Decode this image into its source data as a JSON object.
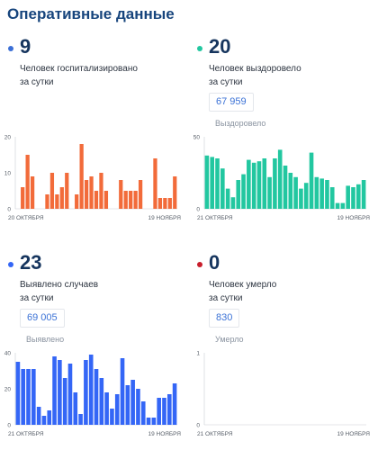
{
  "title": "Оперативные данные",
  "panels": [
    {
      "value": "9",
      "desc1": "Человек госпитализировано",
      "desc2": "за сутки",
      "total": "",
      "total_label": "",
      "color": "#f26b3a",
      "dot_color": "#3b6fd6"
    },
    {
      "value": "20",
      "desc1": "Человек выздоровело",
      "desc2": "за сутки",
      "total": "67 959",
      "total_label": "Выздоровело",
      "color": "#22c7a0",
      "dot_color": "#22c7a0"
    },
    {
      "value": "23",
      "desc1": "Выявлено случаев",
      "desc2": "за сутки",
      "total": "69 005",
      "total_label": "Выявлено",
      "color": "#3466f6",
      "dot_color": "#3466f6"
    },
    {
      "value": "0",
      "desc1": "Человек умерло",
      "desc2": "за сутки",
      "total": "830",
      "total_label": "Умерло",
      "color": "#d63c3c",
      "dot_color": "#c81e2c"
    }
  ],
  "chart_data": [
    {
      "type": "bar",
      "title": "Человек госпитализировано за сутки",
      "ylim": [
        0,
        20
      ],
      "yticks": [
        "0",
        "10",
        "20"
      ],
      "x_start_label": "20 ОКТЯБРЯ",
      "x_end_label": "19 НОЯБРЯ",
      "values": [
        0,
        6,
        15,
        9,
        0,
        0,
        4,
        10,
        4,
        6,
        10,
        0,
        4,
        18,
        8,
        9,
        5,
        10,
        5,
        0,
        0,
        8,
        5,
        5,
        5,
        8,
        0,
        0,
        14,
        3,
        3,
        3,
        9
      ],
      "color": "#f26b3a"
    },
    {
      "type": "bar",
      "title": "Человек выздоровело за сутки",
      "ylim": [
        0,
        50
      ],
      "yticks": [
        "0",
        "50"
      ],
      "x_start_label": "21 ОКТЯБРЯ",
      "x_end_label": "19 НОЯБРЯ",
      "values": [
        37,
        36,
        35,
        28,
        14,
        8,
        20,
        24,
        34,
        32,
        33,
        35,
        22,
        35,
        41,
        30,
        25,
        22,
        14,
        18,
        39,
        22,
        21,
        20,
        15,
        4,
        4,
        16,
        15,
        17,
        20
      ],
      "color": "#22c7a0"
    },
    {
      "type": "bar",
      "title": "Выявлено случаев за сутки",
      "ylim": [
        0,
        40
      ],
      "yticks": [
        "0",
        "20",
        "40"
      ],
      "x_start_label": "21 ОКТЯБРЯ",
      "x_end_label": "19 НОЯБРЯ",
      "values": [
        35,
        31,
        31,
        31,
        10,
        5,
        8,
        38,
        36,
        26,
        34,
        18,
        6,
        36,
        39,
        31,
        26,
        18,
        9,
        17,
        37,
        22,
        25,
        20,
        13,
        4,
        4,
        15,
        15,
        17,
        23
      ],
      "color": "#3466f6"
    },
    {
      "type": "bar",
      "title": "Человек умерло за сутки",
      "ylim": [
        0,
        1
      ],
      "yticks": [
        "0",
        "1"
      ],
      "x_start_label": "21 ОКТЯБРЯ",
      "x_end_label": "19 НОЯБРЯ",
      "values": [
        0,
        0,
        0,
        0,
        0,
        0,
        0,
        0,
        0,
        0,
        0,
        0,
        0,
        0,
        0,
        0,
        0,
        0,
        0,
        0,
        0,
        0,
        0,
        0,
        0,
        0,
        0,
        0,
        0,
        0,
        0
      ],
      "color": "#d63c3c"
    }
  ]
}
